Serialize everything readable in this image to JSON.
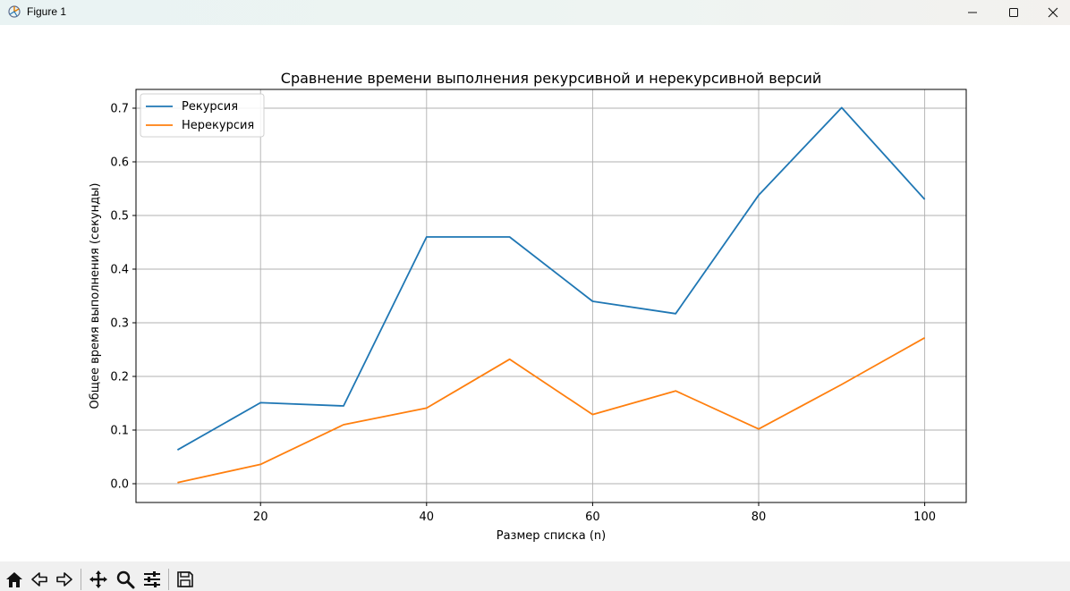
{
  "window": {
    "title": "Figure 1",
    "icons": [
      "app-icon",
      "minimize-icon",
      "maximize-icon",
      "close-icon"
    ]
  },
  "toolbar": {
    "buttons": [
      "home-icon",
      "back-icon",
      "forward-icon",
      "pan-icon",
      "zoom-icon",
      "configure-subplots-icon",
      "save-icon"
    ]
  },
  "chart_data": {
    "type": "line",
    "title": "Сравнение времени выполнения рекурсивной и нерекурсивной версий",
    "xlabel": "Размер списка (n)",
    "ylabel": "Общее время выполнения (секунды)",
    "xlim": [
      5,
      105
    ],
    "ylim": [
      -0.035,
      0.735
    ],
    "xticks": [
      20,
      40,
      60,
      80,
      100
    ],
    "yticks": [
      0.0,
      0.1,
      0.2,
      0.3,
      0.4,
      0.5,
      0.6,
      0.7
    ],
    "ytick_labels": [
      "0.0",
      "0.1",
      "0.2",
      "0.3",
      "0.4",
      "0.5",
      "0.6",
      "0.7"
    ],
    "grid": true,
    "legend_position": "upper-left",
    "x": [
      10,
      20,
      30,
      40,
      50,
      60,
      70,
      80,
      90,
      100
    ],
    "series": [
      {
        "name": "Рекурсия",
        "color": "#1f77b4",
        "values": [
          0.063,
          0.151,
          0.145,
          0.46,
          0.46,
          0.34,
          0.317,
          0.538,
          0.701,
          0.53
        ]
      },
      {
        "name": "Нерекурсия",
        "color": "#ff7f0e",
        "values": [
          0.002,
          0.036,
          0.11,
          0.141,
          0.232,
          0.129,
          0.173,
          0.102,
          0.185,
          0.272
        ]
      }
    ]
  }
}
